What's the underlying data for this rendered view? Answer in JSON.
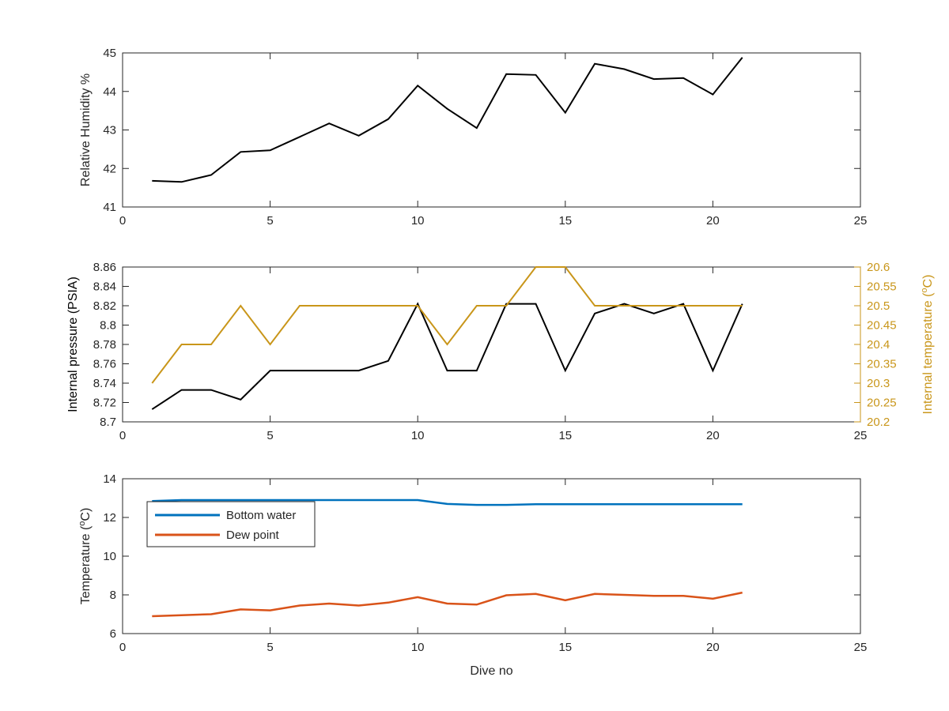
{
  "figure": {
    "xlabel": "Dive no"
  },
  "colors": {
    "axis": "#262626",
    "black_series": "#000000",
    "gold": "#C9961A",
    "blue": "#0072BD",
    "orange": "#D95319"
  },
  "chart_data": [
    {
      "type": "line",
      "xlabel": "",
      "ylabel": "Relative Humidity %",
      "xlim": [
        0,
        25
      ],
      "ylim": [
        41,
        45
      ],
      "xticks": [
        0,
        5,
        10,
        15,
        20,
        25
      ],
      "yticks": [
        41,
        42,
        43,
        44,
        45
      ],
      "grid": false,
      "series": [
        {
          "x": [
            1,
            2,
            3,
            4,
            5,
            6,
            7,
            8,
            9,
            10,
            11,
            12,
            13,
            14,
            15,
            16,
            17,
            18,
            19,
            20,
            21
          ],
          "values": [
            41.68,
            41.65,
            41.83,
            42.43,
            42.47,
            42.82,
            43.17,
            42.85,
            43.28,
            44.15,
            43.55,
            43.05,
            44.45,
            44.43,
            43.45,
            44.72,
            44.58,
            44.32,
            44.35,
            43.92,
            44.88
          ],
          "color": "#000000"
        }
      ]
    },
    {
      "type": "line",
      "xlabel": "",
      "ylabel": "Internal pressure (PSIA)",
      "y2label": "Internal temperature (°C)",
      "xlim": [
        0,
        25
      ],
      "ylim": [
        8.7,
        8.86
      ],
      "y2lim": [
        20.2,
        20.6
      ],
      "xticks": [
        0,
        5,
        10,
        15,
        20,
        25
      ],
      "yticks": [
        8.7,
        8.72,
        8.74,
        8.76,
        8.78,
        8.8,
        8.82,
        8.84,
        8.86
      ],
      "ytick_labels": [
        "8.7",
        "8.72",
        "8.74",
        "8.76",
        "8.78",
        "8.8",
        "8.82",
        "8.84",
        "8.86"
      ],
      "y2ticks": [
        20.2,
        20.25,
        20.3,
        20.35,
        20.4,
        20.45,
        20.5,
        20.55,
        20.6
      ],
      "y2tick_labels": [
        "20.2",
        "20.25",
        "20.3",
        "20.35",
        "20.4",
        "20.45",
        "20.5",
        "20.55",
        "20.6"
      ],
      "grid": false,
      "series": [
        {
          "axis": "left",
          "x": [
            1,
            2,
            3,
            4,
            5,
            6,
            7,
            8,
            9,
            10,
            11,
            12,
            13,
            14,
            15,
            16,
            17,
            18,
            19,
            20,
            21
          ],
          "values": [
            8.713,
            8.733,
            8.733,
            8.723,
            8.753,
            8.753,
            8.753,
            8.753,
            8.763,
            8.822,
            8.753,
            8.753,
            8.822,
            8.822,
            8.753,
            8.812,
            8.822,
            8.812,
            8.822,
            8.753,
            8.822
          ],
          "color": "#000000"
        },
        {
          "axis": "right",
          "x": [
            1,
            2,
            3,
            4,
            5,
            6,
            7,
            8,
            9,
            10,
            11,
            12,
            13,
            14,
            15,
            16,
            17,
            18,
            19,
            20,
            21
          ],
          "values": [
            20.3,
            20.4,
            20.4,
            20.5,
            20.4,
            20.5,
            20.5,
            20.5,
            20.5,
            20.5,
            20.4,
            20.5,
            20.5,
            20.6,
            20.6,
            20.5,
            20.5,
            20.5,
            20.5,
            20.5,
            20.5
          ],
          "color": "#C9961A"
        }
      ]
    },
    {
      "type": "line",
      "xlabel": "Dive no",
      "ylabel": "Temperature (°C)",
      "xlim": [
        0,
        25
      ],
      "ylim": [
        6,
        14
      ],
      "xticks": [
        0,
        5,
        10,
        15,
        20,
        25
      ],
      "yticks": [
        6,
        8,
        10,
        12,
        14
      ],
      "grid": false,
      "legend_position": "top-left",
      "series": [
        {
          "name": "Bottom water",
          "x": [
            1,
            2,
            3,
            4,
            5,
            6,
            7,
            8,
            9,
            10,
            11,
            12,
            13,
            14,
            15,
            16,
            17,
            18,
            19,
            20,
            21
          ],
          "values": [
            12.85,
            12.9,
            12.9,
            12.9,
            12.9,
            12.9,
            12.9,
            12.9,
            12.9,
            12.9,
            12.7,
            12.65,
            12.65,
            12.68,
            12.68,
            12.68,
            12.68,
            12.68,
            12.68,
            12.68,
            12.68
          ],
          "color": "#0072BD"
        },
        {
          "name": "Dew point",
          "x": [
            1,
            2,
            3,
            4,
            5,
            6,
            7,
            8,
            9,
            10,
            11,
            12,
            13,
            14,
            15,
            16,
            17,
            18,
            19,
            20,
            21
          ],
          "values": [
            6.9,
            6.95,
            7.0,
            7.25,
            7.2,
            7.45,
            7.55,
            7.45,
            7.6,
            7.88,
            7.55,
            7.5,
            7.98,
            8.05,
            7.72,
            8.05,
            8.0,
            7.95,
            7.95,
            7.8,
            8.12
          ],
          "color": "#D95319"
        }
      ]
    }
  ]
}
